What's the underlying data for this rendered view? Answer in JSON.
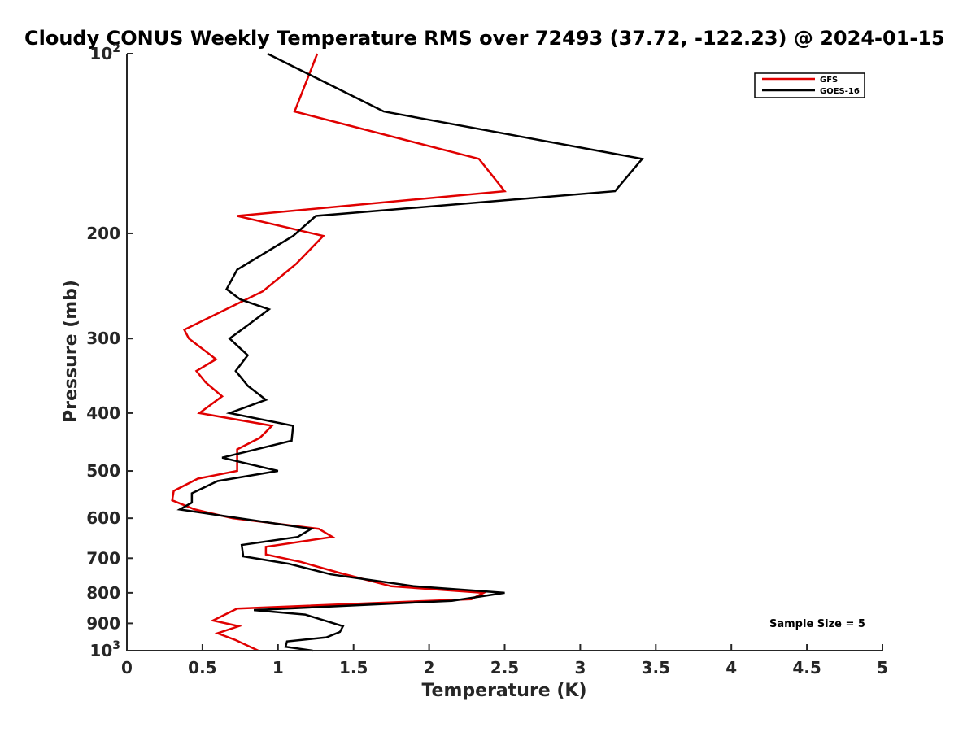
{
  "chart_data": {
    "type": "line",
    "title": "Cloudy CONUS Weekly Temperature RMS over 72493 (37.72, -122.23) @ 2024-01-15",
    "xlabel": "Temperature (K)",
    "ylabel": "Pressure (mb)",
    "xlim": [
      0,
      5
    ],
    "ylim": [
      1000,
      100
    ],
    "y_scale": "log",
    "grid": false,
    "legend_position": "top-right",
    "x_ticks": [
      0,
      0.5,
      1,
      1.5,
      2,
      2.5,
      3,
      3.5,
      4,
      4.5,
      5
    ],
    "x_tick_labels": [
      "0",
      "0.5",
      "1",
      "1.5",
      "2",
      "2.5",
      "3",
      "3.5",
      "4",
      "4.5",
      "5"
    ],
    "y_ticks": [
      100,
      200,
      300,
      400,
      500,
      600,
      700,
      800,
      900,
      1000
    ],
    "y_tick_labels": [
      {
        "base": "10",
        "exp": "2"
      },
      {
        "base": "200",
        "exp": ""
      },
      {
        "base": "300",
        "exp": ""
      },
      {
        "base": "400",
        "exp": ""
      },
      {
        "base": "500",
        "exp": ""
      },
      {
        "base": "600",
        "exp": ""
      },
      {
        "base": "700",
        "exp": ""
      },
      {
        "base": "800",
        "exp": ""
      },
      {
        "base": "900",
        "exp": ""
      },
      {
        "base": "10",
        "exp": "3"
      }
    ],
    "annotation": "Sample Size = 5",
    "series": [
      {
        "name": "GFS",
        "color": "#e00000",
        "points": [
          {
            "x": 1.26,
            "y": 100
          },
          {
            "x": 1.11,
            "y": 125
          },
          {
            "x": 2.33,
            "y": 150
          },
          {
            "x": 2.5,
            "y": 170
          },
          {
            "x": 0.73,
            "y": 187
          },
          {
            "x": 1.3,
            "y": 202
          },
          {
            "x": 1.12,
            "y": 225
          },
          {
            "x": 0.9,
            "y": 250
          },
          {
            "x": 0.38,
            "y": 290
          },
          {
            "x": 0.41,
            "y": 300
          },
          {
            "x": 0.59,
            "y": 325
          },
          {
            "x": 0.46,
            "y": 340
          },
          {
            "x": 0.52,
            "y": 355
          },
          {
            "x": 0.63,
            "y": 375
          },
          {
            "x": 0.48,
            "y": 400
          },
          {
            "x": 0.96,
            "y": 420
          },
          {
            "x": 0.88,
            "y": 440
          },
          {
            "x": 0.73,
            "y": 460
          },
          {
            "x": 0.73,
            "y": 500
          },
          {
            "x": 0.47,
            "y": 515
          },
          {
            "x": 0.31,
            "y": 540
          },
          {
            "x": 0.3,
            "y": 560
          },
          {
            "x": 0.45,
            "y": 580
          },
          {
            "x": 0.7,
            "y": 600
          },
          {
            "x": 1.27,
            "y": 625
          },
          {
            "x": 1.36,
            "y": 645
          },
          {
            "x": 0.92,
            "y": 670
          },
          {
            "x": 0.92,
            "y": 690
          },
          {
            "x": 1.15,
            "y": 710
          },
          {
            "x": 1.4,
            "y": 740
          },
          {
            "x": 1.75,
            "y": 780
          },
          {
            "x": 2.36,
            "y": 800
          },
          {
            "x": 2.28,
            "y": 820
          },
          {
            "x": 0.73,
            "y": 850
          },
          {
            "x": 0.57,
            "y": 890
          },
          {
            "x": 0.74,
            "y": 910
          },
          {
            "x": 0.6,
            "y": 935
          },
          {
            "x": 0.72,
            "y": 960
          },
          {
            "x": 0.87,
            "y": 1000
          }
        ]
      },
      {
        "name": "GOES-16",
        "color": "#000000",
        "points": [
          {
            "x": 0.93,
            "y": 100
          },
          {
            "x": 1.7,
            "y": 125
          },
          {
            "x": 3.41,
            "y": 150
          },
          {
            "x": 3.23,
            "y": 170
          },
          {
            "x": 1.25,
            "y": 187
          },
          {
            "x": 1.1,
            "y": 202
          },
          {
            "x": 0.73,
            "y": 230
          },
          {
            "x": 0.66,
            "y": 248
          },
          {
            "x": 0.75,
            "y": 258
          },
          {
            "x": 0.94,
            "y": 268
          },
          {
            "x": 0.8,
            "y": 285
          },
          {
            "x": 0.68,
            "y": 300
          },
          {
            "x": 0.8,
            "y": 320
          },
          {
            "x": 0.72,
            "y": 340
          },
          {
            "x": 0.8,
            "y": 360
          },
          {
            "x": 0.92,
            "y": 380
          },
          {
            "x": 0.68,
            "y": 400
          },
          {
            "x": 1.1,
            "y": 420
          },
          {
            "x": 1.09,
            "y": 445
          },
          {
            "x": 0.63,
            "y": 475
          },
          {
            "x": 1.0,
            "y": 500
          },
          {
            "x": 0.6,
            "y": 520
          },
          {
            "x": 0.43,
            "y": 545
          },
          {
            "x": 0.43,
            "y": 565
          },
          {
            "x": 0.35,
            "y": 580
          },
          {
            "x": 1.22,
            "y": 625
          },
          {
            "x": 1.13,
            "y": 645
          },
          {
            "x": 0.76,
            "y": 665
          },
          {
            "x": 0.77,
            "y": 695
          },
          {
            "x": 1.07,
            "y": 715
          },
          {
            "x": 1.35,
            "y": 745
          },
          {
            "x": 1.9,
            "y": 780
          },
          {
            "x": 2.5,
            "y": 800
          },
          {
            "x": 2.15,
            "y": 825
          },
          {
            "x": 0.84,
            "y": 855
          },
          {
            "x": 1.18,
            "y": 870
          },
          {
            "x": 1.43,
            "y": 910
          },
          {
            "x": 1.41,
            "y": 930
          },
          {
            "x": 1.32,
            "y": 950
          },
          {
            "x": 1.06,
            "y": 965
          },
          {
            "x": 1.05,
            "y": 985
          },
          {
            "x": 1.23,
            "y": 1000
          }
        ]
      }
    ]
  }
}
